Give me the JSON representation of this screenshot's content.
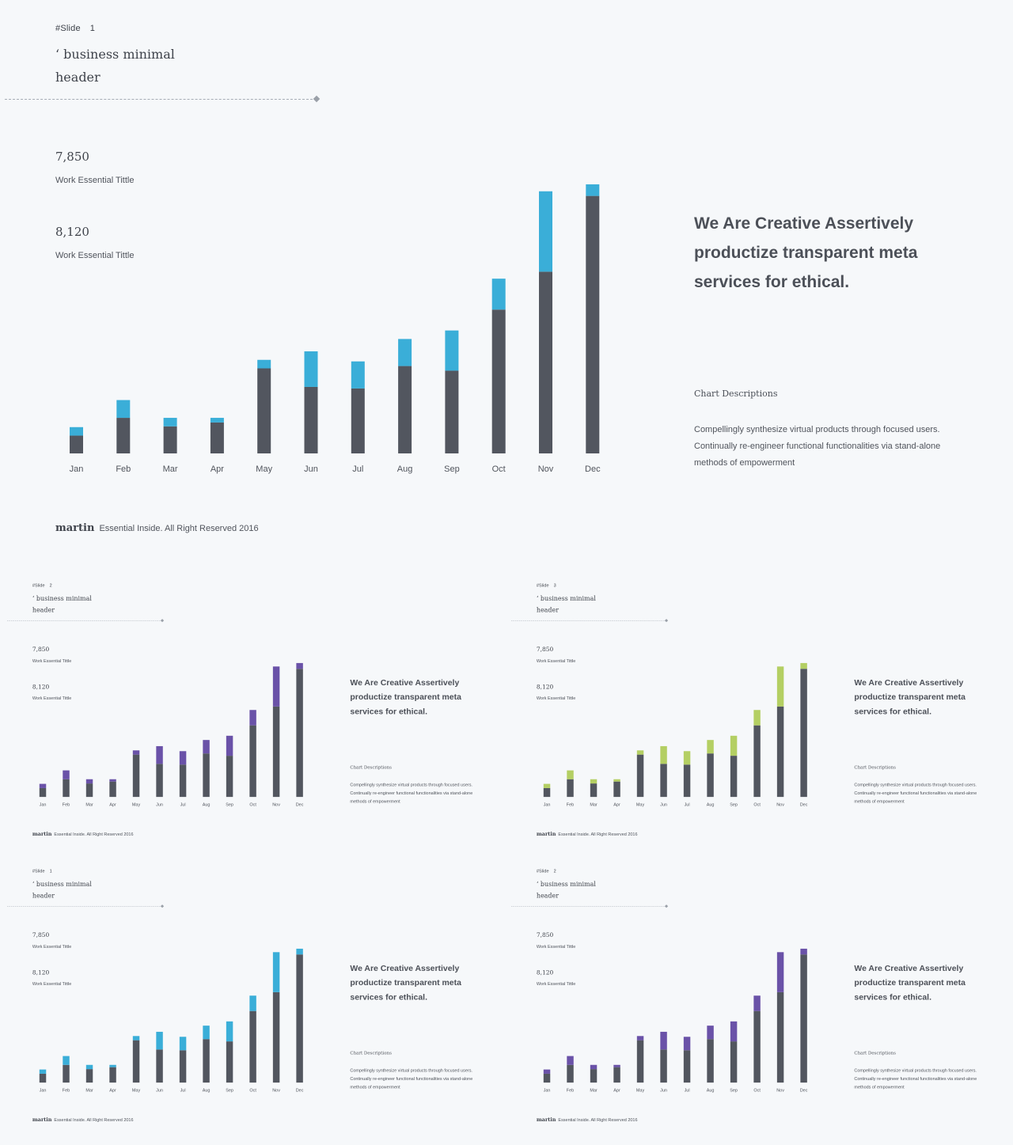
{
  "slides": [
    {
      "tag": "#Slide",
      "num": "1",
      "header_line1": "‘ business minimal",
      "header_line2": "header",
      "stat1_value": "7,850",
      "stat1_label": "Work Essential Tittle",
      "stat2_value": "8,120",
      "stat2_label": "Work Essential Tittle",
      "headline": "We Are Creative Assertively productize transparent meta services for ethical.",
      "desc_title": "Chart Descriptions",
      "desc_body": "Compellingly synthesize virtual products through focused users. Continually re-engineer functional functionalities via stand-alone methods of empowerment",
      "footer_brand": "martin",
      "footer_text": "Essential Inside. All Right Reserved 2016",
      "accent": "#3aaed8"
    },
    {
      "tag": "#Slide",
      "num": "2",
      "header_line1": "‘ business minimal",
      "header_line2": "header",
      "stat1_value": "7,850",
      "stat1_label": "Work Essential Tittle",
      "stat2_value": "8,120",
      "stat2_label": "Work Essential Tittle",
      "headline": "We Are Creative Assertively productize transparent meta services for ethical.",
      "desc_title": "Chart Descriptions",
      "desc_body": "Compellingly synthesize virtual products through focused users. Continually re-engineer functional functionalities via stand-alone methods of empowerment",
      "footer_brand": "martin",
      "footer_text": "Essential Inside. All Right Reserved 2016",
      "accent": "#6a52a8"
    },
    {
      "tag": "#Slide",
      "num": "3",
      "header_line1": "‘ business minimal",
      "header_line2": "header",
      "stat1_value": "7,850",
      "stat1_label": "Work Essential Tittle",
      "stat2_value": "8,120",
      "stat2_label": "Work Essential Tittle",
      "headline": "We Are Creative Assertively productize transparent meta services for ethical.",
      "desc_title": "Chart Descriptions",
      "desc_body": "Compellingly synthesize virtual products through focused users. Continually re-engineer functional functionalities via stand-alone methods of empowerment",
      "footer_brand": "martin",
      "footer_text": "Essential Inside. All Right Reserved 2016",
      "accent": "#b4cf63"
    },
    {
      "tag": "#Slide",
      "num": "1",
      "header_line1": "‘ business minimal",
      "header_line2": "header",
      "stat1_value": "7,850",
      "stat1_label": "Work Essential Tittle",
      "stat2_value": "8,120",
      "stat2_label": "Work Essential Tittle",
      "headline": "We Are Creative Assertively productize transparent meta services for ethical.",
      "desc_title": "Chart Descriptions",
      "desc_body": "Compellingly synthesize virtual products through focused users. Continually re-engineer functional functionalities via stand-alone methods of empowerment",
      "footer_brand": "martin",
      "footer_text": "Essential Inside. All Right Reserved 2016",
      "accent": "#3aaed8"
    },
    {
      "tag": "#Slide",
      "num": "2",
      "header_line1": "‘ business minimal",
      "header_line2": "header",
      "stat1_value": "7,850",
      "stat1_label": "Work Essential Tittle",
      "stat2_value": "8,120",
      "stat2_label": "Work Essential Tittle",
      "headline": "We Are Creative Assertively productize transparent meta services for ethical.",
      "desc_title": "Chart Descriptions",
      "desc_body": "Compellingly synthesize virtual products through focused users. Continually re-engineer functional functionalities via stand-alone methods of empowerment",
      "footer_brand": "martin",
      "footer_text": "Essential Inside. All Right Reserved 2016",
      "accent": "#6a52a8"
    }
  ],
  "chart_data": {
    "type": "bar",
    "stacked": true,
    "categories": [
      "Jan",
      "Feb",
      "Mar",
      "Apr",
      "May",
      "Jun",
      "Jul",
      "Aug",
      "Sep",
      "Oct",
      "Nov",
      "Dec"
    ],
    "series": [
      {
        "values": [
          23,
          46,
          35,
          40,
          110,
          86,
          84,
          113,
          107,
          186,
          235,
          333
        ],
        "color": "#52565f"
      },
      {
        "values": [
          11,
          23,
          11,
          6,
          11,
          46,
          35,
          35,
          52,
          40,
          104,
          15
        ],
        "color": "#3aaed8"
      }
    ],
    "ylim": [
      0,
      350
    ],
    "grid": false,
    "legend": "none",
    "xlabel": "",
    "ylabel": ""
  }
}
